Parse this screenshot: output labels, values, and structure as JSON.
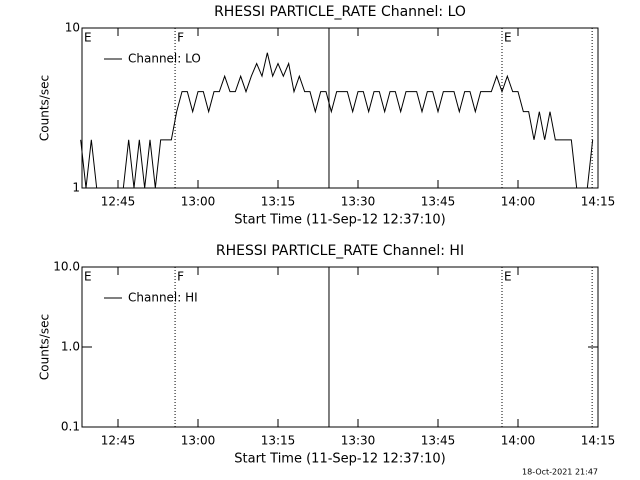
{
  "chart_data": [
    {
      "type": "line",
      "title": "RHESSI PARTICLE_RATE Channel: LO",
      "xlabel": "Start Time (11-Sep-12 12:37:10)",
      "ylabel": "Counts/sec",
      "xlim": [
        758.25,
        855
      ],
      "xticks": [
        {
          "value": 765,
          "label": "12:45"
        },
        {
          "value": 780,
          "label": "13:00"
        },
        {
          "value": 795,
          "label": "13:15"
        },
        {
          "value": 810,
          "label": "13:30"
        },
        {
          "value": 825,
          "label": "13:45"
        },
        {
          "value": 840,
          "label": "14:00"
        },
        {
          "value": 855,
          "label": "14:15"
        }
      ],
      "ylim": [
        1,
        10
      ],
      "yticks": [
        1,
        10
      ],
      "log_y": true,
      "x": [
        758,
        759,
        760,
        761,
        762,
        763,
        764,
        765,
        766,
        767,
        768,
        769,
        770,
        771,
        772,
        773,
        774,
        775,
        776,
        777,
        778,
        779,
        780,
        781,
        782,
        783,
        784,
        785,
        786,
        787,
        788,
        789,
        790,
        791,
        792,
        793,
        794,
        795,
        796,
        797,
        798,
        799,
        800,
        801,
        802,
        803,
        804,
        805,
        806,
        807,
        808,
        809,
        810,
        811,
        812,
        813,
        814,
        815,
        816,
        817,
        818,
        819,
        820,
        821,
        822,
        823,
        824,
        825,
        826,
        827,
        828,
        829,
        830,
        831,
        832,
        833,
        834,
        835,
        836,
        837,
        838,
        839,
        840,
        841,
        842,
        843,
        844,
        845,
        846,
        847,
        848,
        849,
        850,
        851,
        852,
        853,
        854
      ],
      "series": [
        {
          "name": "Channel: LO",
          "color": "#000000",
          "values": [
            2,
            1,
            2,
            1,
            1,
            1,
            1,
            1,
            1,
            2,
            1,
            2,
            1,
            2,
            1,
            2,
            2,
            2,
            3,
            4,
            4,
            3,
            4,
            4,
            3,
            4,
            4,
            5,
            4,
            4,
            5,
            4,
            5,
            6,
            5,
            7,
            5,
            6,
            5,
            6,
            4,
            5,
            4,
            4,
            3,
            4,
            4,
            3,
            4,
            4,
            4,
            3,
            4,
            4,
            3,
            4,
            4,
            3,
            4,
            4,
            3,
            4,
            4,
            4,
            3,
            4,
            4,
            3,
            4,
            4,
            4,
            3,
            4,
            4,
            3,
            4,
            4,
            4,
            5,
            4,
            5,
            4,
            4,
            3,
            3,
            2,
            3,
            2,
            3,
            2,
            2,
            2,
            2,
            1,
            1,
            1,
            2
          ]
        }
      ],
      "vlines": [
        {
          "x": 775.7,
          "style": "dotted"
        },
        {
          "x": 804.56,
          "style": "solid"
        },
        {
          "x": 837,
          "style": "dotted"
        },
        {
          "x": 853.9,
          "style": "dotted"
        }
      ],
      "annotations": [
        {
          "text": "E",
          "x": 758.25
        },
        {
          "text": "F",
          "x": 775.7
        },
        {
          "text": "E",
          "x": 837
        }
      ]
    },
    {
      "type": "line",
      "title": "RHESSI PARTICLE_RATE Channel: HI",
      "xlabel": "Start Time (11-Sep-12 12:37:10)",
      "ylabel": "Counts/sec",
      "xlim": [
        758.25,
        855
      ],
      "xticks": [
        {
          "value": 765,
          "label": "12:45"
        },
        {
          "value": 780,
          "label": "13:00"
        },
        {
          "value": 795,
          "label": "13:15"
        },
        {
          "value": 810,
          "label": "13:30"
        },
        {
          "value": 825,
          "label": "13:45"
        },
        {
          "value": 840,
          "label": "14:00"
        },
        {
          "value": 855,
          "label": "14:15"
        }
      ],
      "ylim": [
        0.1,
        10
      ],
      "yticks": [
        {
          "value": 0.1,
          "label": "0.1"
        },
        {
          "value": 1,
          "label": "1.0"
        },
        {
          "value": 10,
          "label": "10.0"
        }
      ],
      "log_y": true,
      "x": [],
      "series": [
        {
          "name": "Channel: HI",
          "color": "#000000",
          "values": []
        }
      ],
      "vlines": [
        {
          "x": 775.7,
          "style": "dotted"
        },
        {
          "x": 804.56,
          "style": "solid"
        },
        {
          "x": 837,
          "style": "dotted"
        },
        {
          "x": 853.9,
          "style": "dotted"
        }
      ],
      "annotations": [
        {
          "text": "E",
          "x": 758.25
        },
        {
          "text": "F",
          "x": 775.7
        },
        {
          "text": "E",
          "x": 837
        }
      ]
    }
  ],
  "footer": "18-Oct-2021 21:47"
}
